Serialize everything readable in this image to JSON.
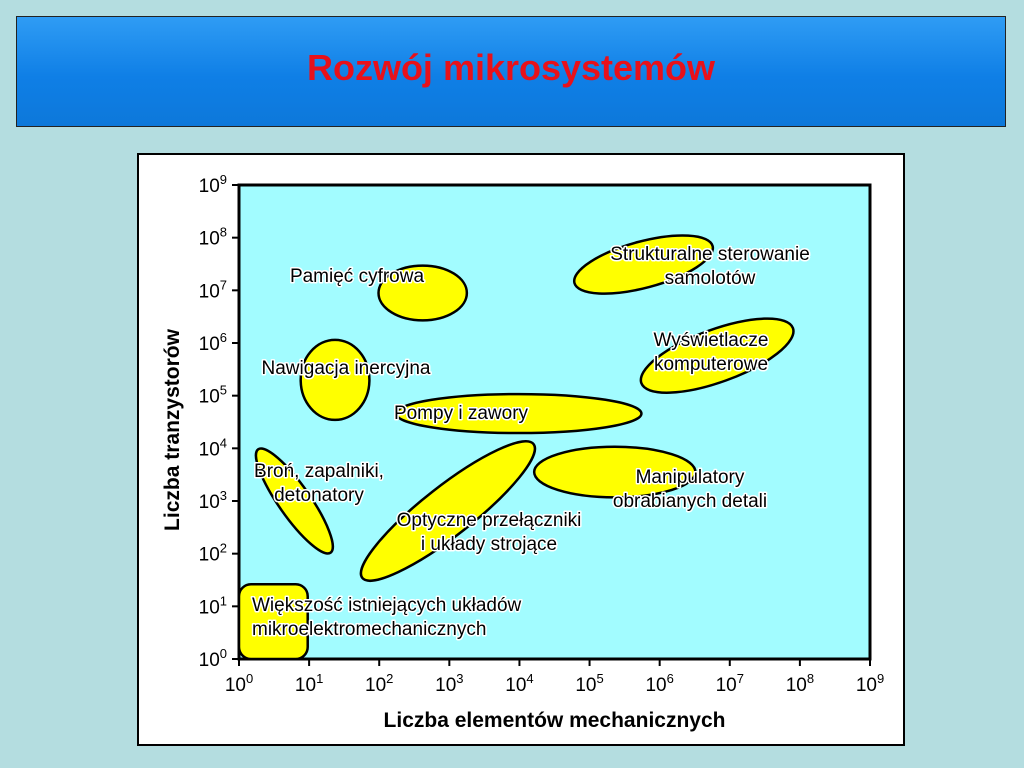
{
  "slide": {
    "title": "Rozwój mikrosystemów"
  },
  "chart_data": {
    "type": "scatter",
    "xlabel": "Liczba elementów mechanicznych",
    "ylabel": "Liczba tranzystorów",
    "xscale": "log",
    "yscale": "log",
    "xlim_exponent": [
      0,
      9
    ],
    "ylim_exponent": [
      0,
      9
    ],
    "tick_base": "10",
    "x_tick_exponents": [
      "0",
      "1",
      "2",
      "3",
      "4",
      "5",
      "6",
      "7",
      "8",
      "9"
    ],
    "y_tick_exponents": [
      "0",
      "1",
      "2",
      "3",
      "4",
      "5",
      "6",
      "7",
      "8",
      "9"
    ],
    "region_color": "#ffff00",
    "plot_color": "#a2fcff",
    "regions": [
      {
        "label_lines": [
          "Pamięć cyfrowa"
        ],
        "shape": "ellipse",
        "cx": 2.62,
        "cy": 6.95,
        "rx": 0.63,
        "ry": 0.52,
        "angle": 0
      },
      {
        "label_lines": [
          "Strukturalne sterowanie",
          "samolotów"
        ],
        "shape": "ellipse",
        "cx": 5.77,
        "cy": 7.49,
        "rx": 1.02,
        "ry": 0.44,
        "angle": -15
      },
      {
        "label_lines": [
          "Wyświetlacze",
          "komputerowe"
        ],
        "shape": "ellipse",
        "cx": 6.82,
        "cy": 5.76,
        "rx": 1.15,
        "ry": 0.5,
        "angle": -20
      },
      {
        "label_lines": [
          "Nawigacja inercyjna"
        ],
        "shape": "ellipse",
        "cx": 1.37,
        "cy": 5.3,
        "rx": 0.49,
        "ry": 0.76,
        "angle": 0
      },
      {
        "label_lines": [
          "Pompy i zawory"
        ],
        "shape": "ellipse",
        "cx": 3.99,
        "cy": 4.66,
        "rx": 1.75,
        "ry": 0.37,
        "angle": 0
      },
      {
        "label_lines": [
          "Broń, zapalniki,",
          "detonatory"
        ],
        "shape": "ellipse",
        "cx": 0.79,
        "cy": 3.0,
        "rx": 0.9,
        "ry": 0.3,
        "angle": 55
      },
      {
        "label_lines": [
          "Optyczne przełączniki",
          "i układy strojące"
        ],
        "shape": "ellipse",
        "cx": 2.98,
        "cy": 2.81,
        "rx": 1.55,
        "ry": 0.47,
        "angle": -38
      },
      {
        "label_lines": [
          "Manipulatory",
          "obrabianych detali"
        ],
        "shape": "ellipse",
        "cx": 5.36,
        "cy": 3.55,
        "rx": 1.15,
        "ry": 0.48,
        "angle": 0
      },
      {
        "label_lines": [
          "Większość istniejących układów",
          "mikroelektromechanicznych"
        ],
        "shape": "roundrect",
        "x0": 0.0,
        "x1": 0.98,
        "y0": 0.0,
        "y1": 1.42
      }
    ]
  }
}
